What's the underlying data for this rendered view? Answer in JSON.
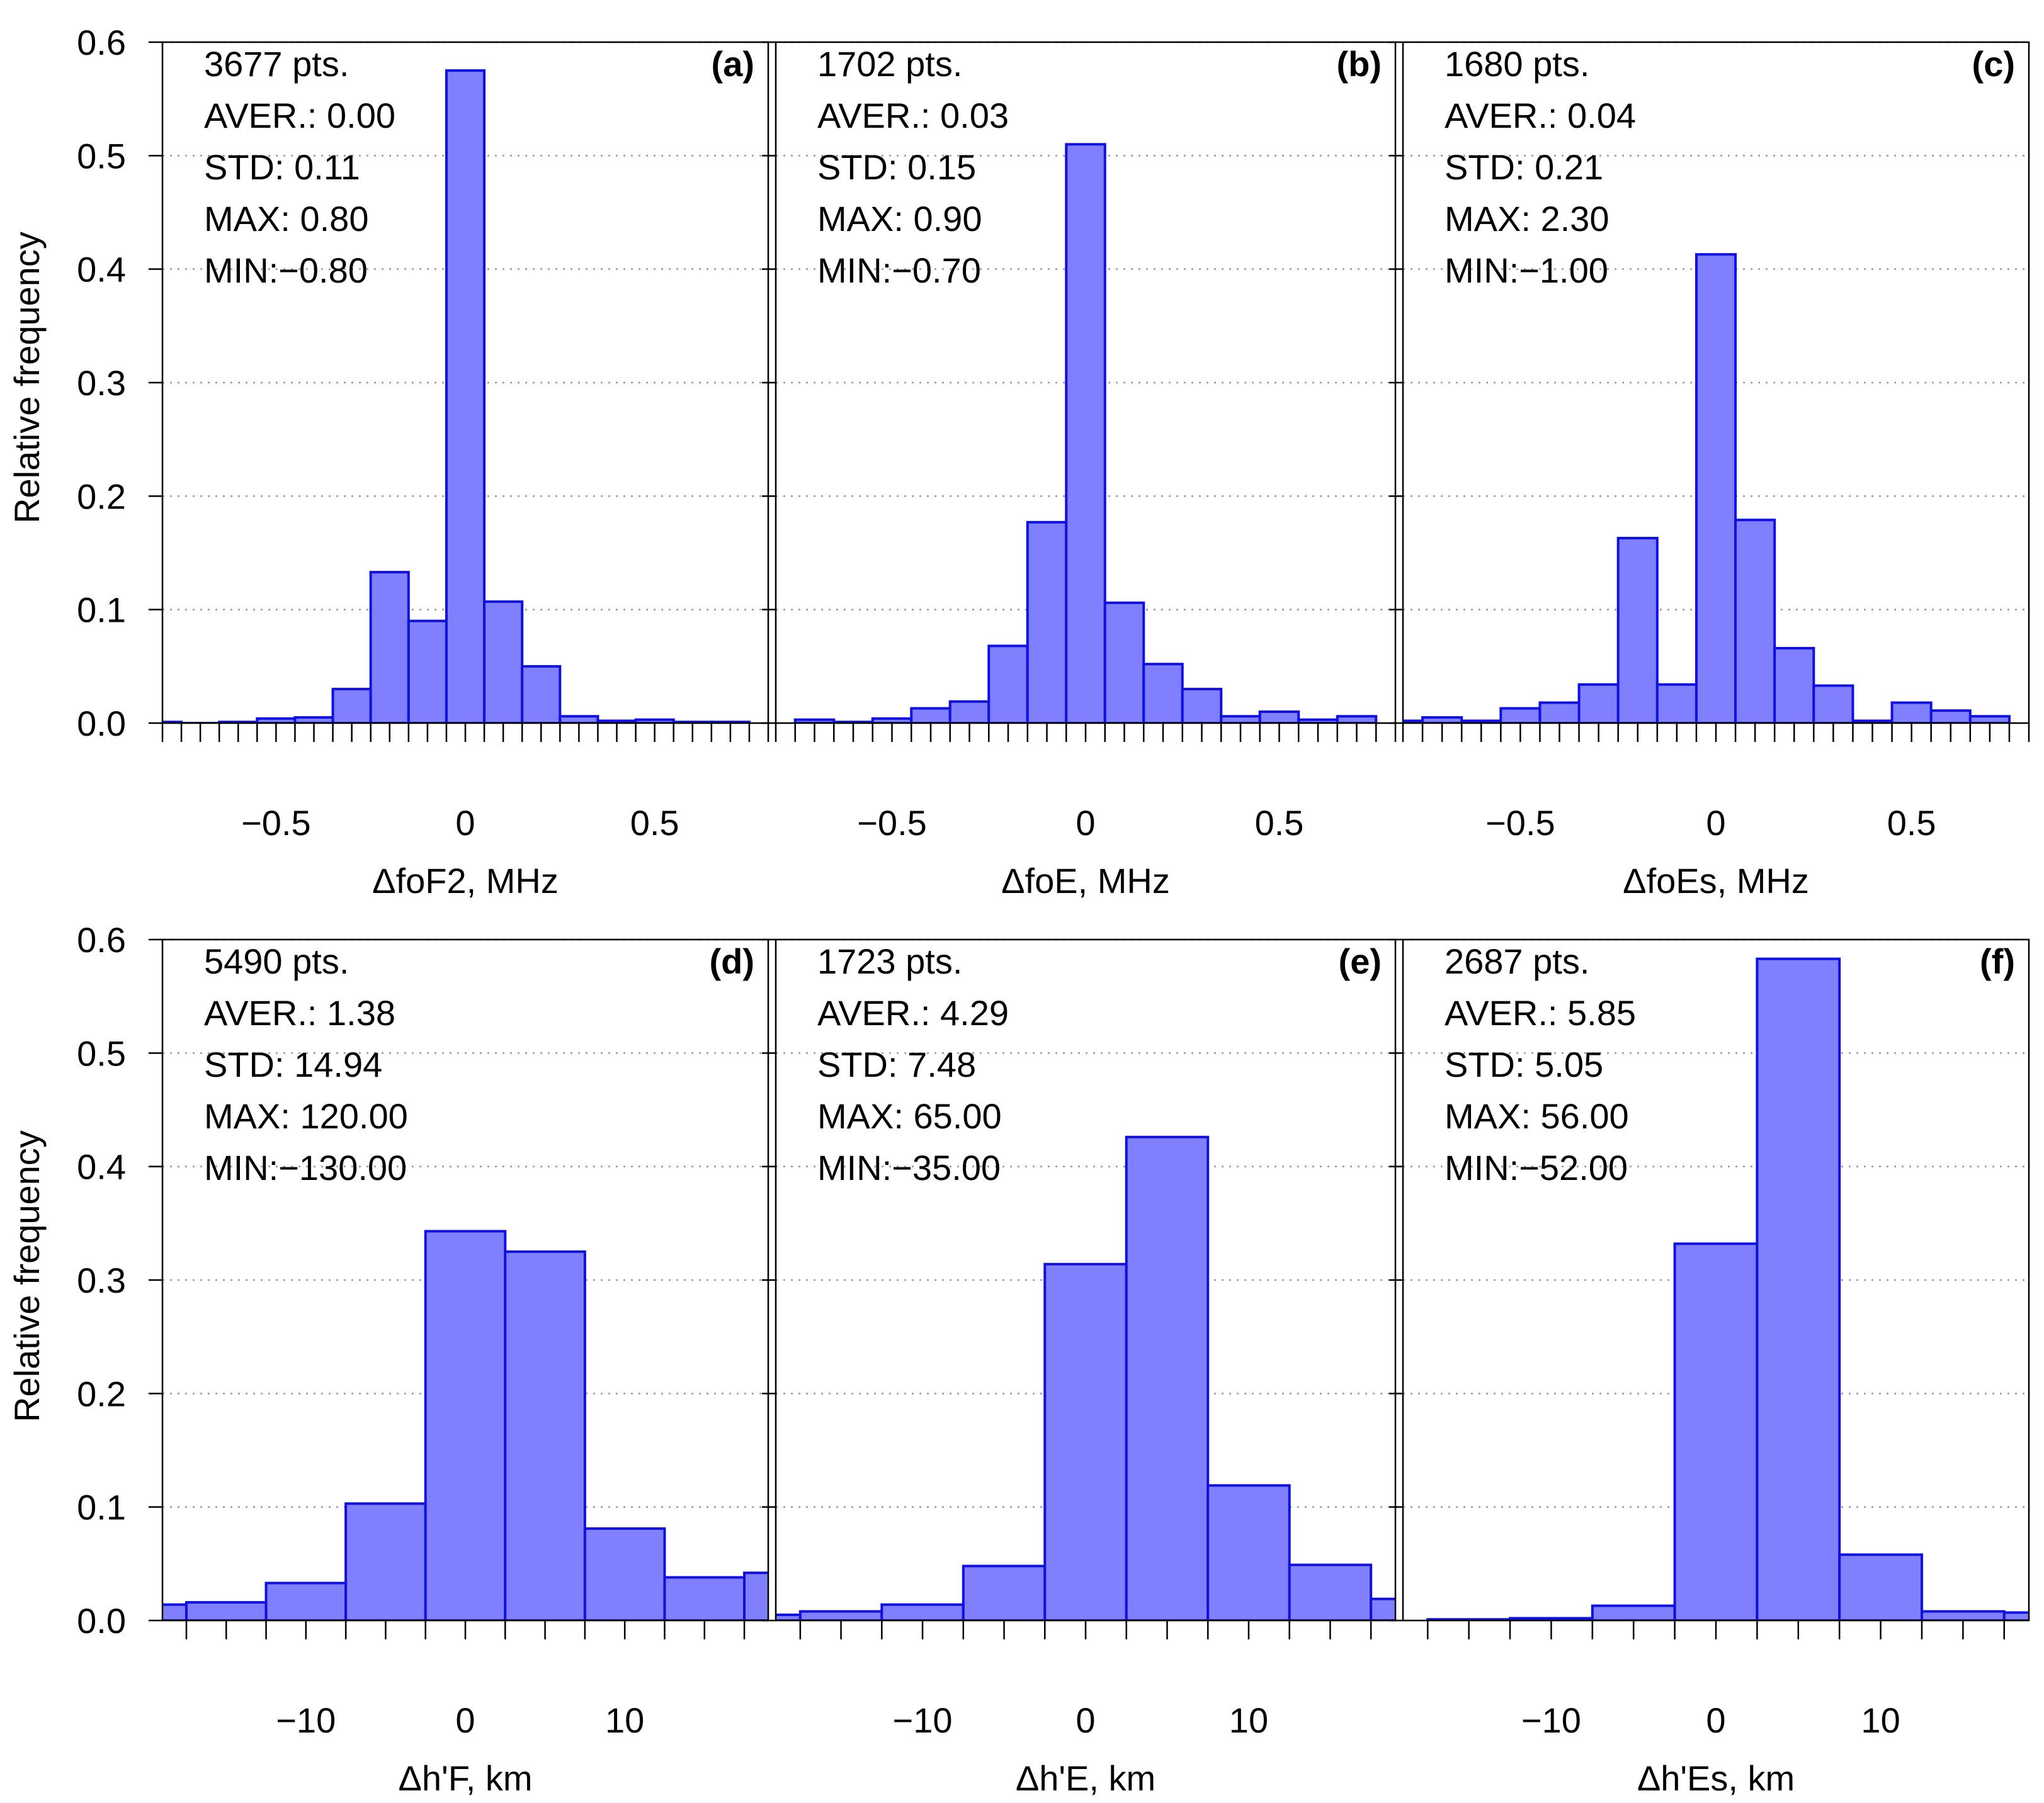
{
  "figure": {
    "y_axis_label": "Relative frequency",
    "bar_fill": "#8080ff",
    "bar_stroke": "#1010e0",
    "grid_color": "#999999"
  },
  "chart_data": [
    {
      "type": "bar",
      "panel_label": "(a)",
      "xlabel": "ΔfoF2, MHz",
      "ylabel": "Relative frequency",
      "stats": [
        "3677 pts.",
        "AVER.: 0.00",
        "STD: 0.11",
        "MAX: 0.80",
        "MIN:−0.80"
      ],
      "xlim": [
        -0.8,
        0.8
      ],
      "ylim": [
        0,
        0.6
      ],
      "xticks": [
        -0.5,
        0,
        0.5
      ],
      "xtick_labels": [
        "−0.5",
        "0",
        "0.5"
      ],
      "yticks": [
        0.0,
        0.1,
        0.2,
        0.3,
        0.4,
        0.5,
        0.6
      ],
      "ytick_labels": [
        "0.0",
        "0.1",
        "0.2",
        "0.3",
        "0.4",
        "0.5",
        "0.6"
      ],
      "bin_width": 0.1,
      "bin_centers": [
        -0.8,
        -0.7,
        -0.6,
        -0.5,
        -0.4,
        -0.3,
        -0.2,
        -0.1,
        0.0,
        0.1,
        0.2,
        0.3,
        0.4,
        0.5,
        0.6,
        0.7
      ],
      "values": [
        0.001,
        0.0,
        0.001,
        0.004,
        0.005,
        0.03,
        0.133,
        0.09,
        0.575,
        0.107,
        0.05,
        0.006,
        0.002,
        0.003,
        0.001,
        0.001
      ]
    },
    {
      "type": "bar",
      "panel_label": "(b)",
      "xlabel": "ΔfoE, MHz",
      "ylabel": "Relative frequency",
      "stats": [
        "1702 pts.",
        "AVER.: 0.03",
        "STD: 0.15",
        "MAX: 0.90",
        "MIN:−0.70"
      ],
      "xlim": [
        -0.8,
        0.8
      ],
      "ylim": [
        0,
        0.6
      ],
      "xticks": [
        -0.5,
        0,
        0.5
      ],
      "xtick_labels": [
        "−0.5",
        "0",
        "0.5"
      ],
      "yticks": [
        0.0,
        0.1,
        0.2,
        0.3,
        0.4,
        0.5,
        0.6
      ],
      "ytick_labels": [
        "0.0",
        "0.1",
        "0.2",
        "0.3",
        "0.4",
        "0.5",
        "0.6"
      ],
      "bin_width": 0.1,
      "bin_centers": [
        -0.7,
        -0.6,
        -0.5,
        -0.4,
        -0.3,
        -0.2,
        -0.1,
        0.0,
        0.1,
        0.2,
        0.3,
        0.4,
        0.5,
        0.6,
        0.7
      ],
      "values": [
        0.003,
        0.001,
        0.004,
        0.013,
        0.019,
        0.068,
        0.177,
        0.51,
        0.106,
        0.052,
        0.03,
        0.006,
        0.01,
        0.003,
        0.006
      ]
    },
    {
      "type": "bar",
      "panel_label": "(c)",
      "xlabel": "ΔfoEs, MHz",
      "ylabel": "Relative frequency",
      "stats": [
        "1680 pts.",
        "AVER.: 0.04",
        "STD: 0.21",
        "MAX: 2.30",
        "MIN:−1.00"
      ],
      "xlim": [
        -0.8,
        0.8
      ],
      "ylim": [
        0,
        0.6
      ],
      "xticks": [
        -0.5,
        0,
        0.5
      ],
      "xtick_labels": [
        "−0.5",
        "0",
        "0.5"
      ],
      "yticks": [
        0.0,
        0.1,
        0.2,
        0.3,
        0.4,
        0.5,
        0.6
      ],
      "ytick_labels": [
        "0.0",
        "0.1",
        "0.2",
        "0.3",
        "0.4",
        "0.5",
        "0.6"
      ],
      "bin_width": 0.1,
      "bin_centers": [
        -0.8,
        -0.7,
        -0.6,
        -0.5,
        -0.4,
        -0.3,
        -0.2,
        -0.1,
        0.0,
        0.1,
        0.2,
        0.3,
        0.4,
        0.5,
        0.6,
        0.7
      ],
      "values": [
        0.002,
        0.005,
        0.002,
        0.013,
        0.018,
        0.034,
        0.163,
        0.034,
        0.413,
        0.179,
        0.066,
        0.033,
        0.002,
        0.018,
        0.011,
        0.006
      ]
    },
    {
      "type": "bar",
      "panel_label": "(d)",
      "xlabel": "Δh'F, km",
      "ylabel": "Relative frequency",
      "stats": [
        "5490 pts.",
        "AVER.: 1.38",
        "STD: 14.94",
        "MAX: 120.00",
        "MIN:−130.00"
      ],
      "xlim": [
        -19,
        19
      ],
      "ylim": [
        0,
        0.6
      ],
      "xticks": [
        -10,
        0,
        10
      ],
      "xtick_labels": [
        "−10",
        "0",
        "10"
      ],
      "yticks": [
        0.0,
        0.1,
        0.2,
        0.3,
        0.4,
        0.5,
        0.6
      ],
      "ytick_labels": [
        "0.0",
        "0.1",
        "0.2",
        "0.3",
        "0.4",
        "0.5",
        "0.6"
      ],
      "bin_width": 5,
      "bin_centers": [
        -20,
        -15,
        -10,
        -5,
        0,
        5,
        10,
        15,
        20
      ],
      "values": [
        0.014,
        0.016,
        0.033,
        0.103,
        0.343,
        0.325,
        0.081,
        0.038,
        0.042
      ]
    },
    {
      "type": "bar",
      "panel_label": "(e)",
      "xlabel": "Δh'E, km",
      "ylabel": "Relative frequency",
      "stats": [
        "1723 pts.",
        "AVER.: 4.29",
        "STD: 7.48",
        "MAX: 65.00",
        "MIN:−35.00"
      ],
      "xlim": [
        -19,
        19
      ],
      "ylim": [
        0,
        0.6
      ],
      "xticks": [
        -10,
        0,
        10
      ],
      "xtick_labels": [
        "−10",
        "0",
        "10"
      ],
      "yticks": [
        0.0,
        0.1,
        0.2,
        0.3,
        0.4,
        0.5,
        0.6
      ],
      "ytick_labels": [
        "0.0",
        "0.1",
        "0.2",
        "0.3",
        "0.4",
        "0.5",
        "0.6"
      ],
      "bin_width": 5,
      "bin_centers": [
        -20,
        -15,
        -10,
        -5,
        0,
        5,
        10,
        15,
        20
      ],
      "values": [
        0.005,
        0.008,
        0.014,
        0.048,
        0.314,
        0.426,
        0.119,
        0.049,
        0.019
      ]
    },
    {
      "type": "bar",
      "panel_label": "(f)",
      "xlabel": "Δh'Es, km",
      "ylabel": "Relative frequency",
      "stats": [
        "2687 pts.",
        "AVER.: 5.85",
        "STD: 5.05",
        "MAX: 56.00",
        "MIN:−52.00"
      ],
      "xlim": [
        -19,
        19
      ],
      "ylim": [
        0,
        0.6
      ],
      "xticks": [
        -10,
        0,
        10
      ],
      "xtick_labels": [
        "−10",
        "0",
        "10"
      ],
      "yticks": [
        0.0,
        0.1,
        0.2,
        0.3,
        0.4,
        0.5,
        0.6
      ],
      "ytick_labels": [
        "0.0",
        "0.1",
        "0.2",
        "0.3",
        "0.4",
        "0.5",
        "0.6"
      ],
      "bin_width": 5,
      "bin_centers": [
        -15,
        -10,
        -5,
        0,
        5,
        10,
        15,
        20
      ],
      "values": [
        0.001,
        0.002,
        0.013,
        0.332,
        0.583,
        0.058,
        0.008,
        0.007
      ]
    }
  ]
}
